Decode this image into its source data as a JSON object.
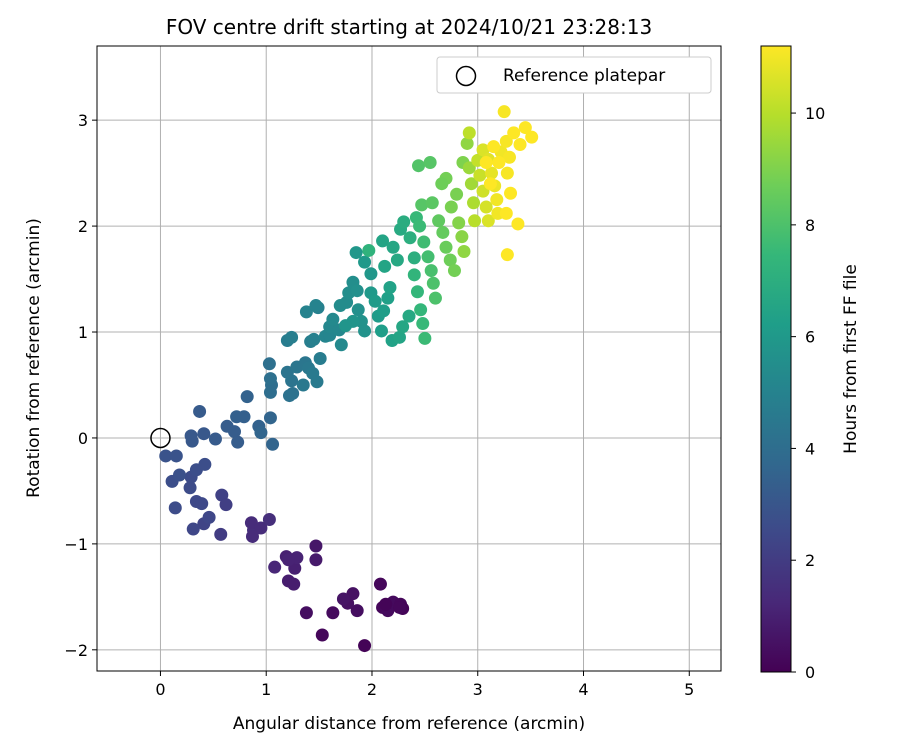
{
  "chart_data": {
    "type": "scatter",
    "title": "FOV centre drift starting at 2024/10/21 23:28:13",
    "xlabel": "Angular distance from reference (arcmin)",
    "ylabel": "Rotation from reference (arcmin)",
    "xlim": [
      -0.6,
      5.3
    ],
    "ylim": [
      -2.2,
      3.7
    ],
    "xticks": [
      0,
      1,
      2,
      3,
      4,
      5
    ],
    "yticks": [
      -2,
      -1,
      0,
      1,
      2,
      3
    ],
    "xtick_labels": [
      "0",
      "1",
      "2",
      "3",
      "4",
      "5"
    ],
    "ytick_labels": [
      "−2",
      "−1",
      "0",
      "1",
      "2",
      "3"
    ],
    "grid": true,
    "legend": {
      "placement": "top-right",
      "entries": [
        {
          "label": "Reference platepar",
          "marker": "open-circle"
        }
      ]
    },
    "reference_point": {
      "x": 0,
      "y": 0
    },
    "colorbar": {
      "label": "Hours from first FF file",
      "colormap": "viridis",
      "range": [
        0,
        11.2
      ],
      "ticks": [
        0,
        2,
        4,
        6,
        8,
        10
      ],
      "tick_labels": [
        "0",
        "2",
        "4",
        "6",
        "8",
        "10"
      ]
    },
    "colormap_stops": [
      "#440154",
      "#482878",
      "#3e4989",
      "#31688e",
      "#26828e",
      "#1f9e89",
      "#35b779",
      "#6ece58",
      "#b5de2b",
      "#fde725"
    ],
    "series": [
      {
        "points": [
          [
            1.93,
            -1.96,
            0.1
          ],
          [
            1.53,
            -1.86,
            0.2
          ],
          [
            1.63,
            -1.65,
            0.3
          ],
          [
            1.38,
            -1.65,
            0.4
          ],
          [
            1.86,
            -1.63,
            0.4
          ],
          [
            1.77,
            -1.56,
            0.5
          ],
          [
            1.82,
            -1.47,
            0.5
          ],
          [
            1.73,
            -1.52,
            0.6
          ],
          [
            2.08,
            -1.38,
            0.2
          ],
          [
            2.1,
            -1.6,
            0.2
          ],
          [
            2.15,
            -1.63,
            0.3
          ],
          [
            2.2,
            -1.55,
            0.3
          ],
          [
            2.27,
            -1.57,
            0.2
          ],
          [
            2.29,
            -1.61,
            0.1
          ],
          [
            2.13,
            -1.57,
            0.1
          ],
          [
            2.26,
            -1.6,
            0.2
          ],
          [
            1.21,
            -1.35,
            0.9
          ],
          [
            1.26,
            -1.38,
            0.9
          ],
          [
            1.27,
            -1.23,
            1.0
          ],
          [
            1.29,
            -1.13,
            1.1
          ],
          [
            1.19,
            -1.12,
            1.0
          ],
          [
            1.21,
            -1.15,
            1.1
          ],
          [
            1.47,
            -1.15,
            0.8
          ],
          [
            1.47,
            -1.02,
            0.7
          ],
          [
            1.08,
            -1.22,
            1.2
          ],
          [
            0.88,
            -0.87,
            1.5
          ],
          [
            0.86,
            -0.8,
            1.4
          ],
          [
            0.95,
            -0.85,
            1.4
          ],
          [
            1.03,
            -0.77,
            1.5
          ],
          [
            0.87,
            -0.93,
            1.4
          ],
          [
            0.57,
            -0.91,
            2.0
          ],
          [
            0.58,
            -0.54,
            2.2
          ],
          [
            0.62,
            -0.63,
            2.1
          ],
          [
            0.41,
            -0.81,
            2.3
          ],
          [
            0.31,
            -0.86,
            2.4
          ],
          [
            0.46,
            -0.75,
            2.4
          ],
          [
            0.34,
            -0.6,
            2.5
          ],
          [
            0.39,
            -0.62,
            2.5
          ],
          [
            0.28,
            -0.47,
            2.6
          ],
          [
            0.29,
            -0.37,
            2.6
          ],
          [
            0.34,
            -0.3,
            2.7
          ],
          [
            0.42,
            -0.25,
            2.7
          ],
          [
            0.14,
            -0.66,
            2.6
          ],
          [
            0.11,
            -0.41,
            2.7
          ],
          [
            0.18,
            -0.35,
            2.8
          ],
          [
            0.05,
            -0.17,
            2.9
          ],
          [
            0.15,
            -0.17,
            2.9
          ],
          [
            0.29,
            0.02,
            3.1
          ],
          [
            0.3,
            -0.03,
            3.1
          ],
          [
            0.41,
            0.04,
            3.1
          ],
          [
            0.37,
            0.25,
            3.2
          ],
          [
            0.52,
            -0.01,
            3.2
          ],
          [
            0.63,
            0.11,
            3.3
          ],
          [
            0.7,
            0.06,
            3.3
          ],
          [
            0.73,
            -0.04,
            3.3
          ],
          [
            0.72,
            0.2,
            3.4
          ],
          [
            0.79,
            0.2,
            3.4
          ],
          [
            0.82,
            0.39,
            3.5
          ],
          [
            0.93,
            0.11,
            3.5
          ],
          [
            0.95,
            0.05,
            3.6
          ],
          [
            1.06,
            -0.06,
            3.6
          ],
          [
            1.04,
            0.19,
            3.6
          ],
          [
            1.04,
            0.43,
            4.0
          ],
          [
            1.05,
            0.5,
            4.0
          ],
          [
            1.04,
            0.56,
            4.1
          ],
          [
            1.03,
            0.7,
            4.1
          ],
          [
            1.22,
            0.4,
            4.2
          ],
          [
            1.25,
            0.42,
            4.2
          ],
          [
            1.24,
            0.54,
            4.3
          ],
          [
            1.2,
            0.62,
            4.3
          ],
          [
            1.29,
            0.67,
            4.4
          ],
          [
            1.37,
            0.71,
            4.4
          ],
          [
            1.4,
            0.66,
            4.5
          ],
          [
            1.35,
            0.5,
            4.5
          ],
          [
            1.44,
            0.61,
            4.6
          ],
          [
            1.48,
            0.53,
            4.6
          ],
          [
            1.51,
            0.75,
            4.7
          ],
          [
            1.2,
            0.92,
            4.7
          ],
          [
            1.24,
            0.95,
            4.8
          ],
          [
            1.42,
            0.91,
            4.8
          ],
          [
            1.45,
            0.93,
            4.9
          ],
          [
            1.49,
            1.23,
            4.9
          ],
          [
            1.38,
            1.19,
            5.0
          ],
          [
            1.47,
            1.25,
            5.0
          ],
          [
            1.56,
            0.96,
            5.1
          ],
          [
            1.6,
            0.97,
            5.1
          ],
          [
            1.6,
            1.05,
            5.2
          ],
          [
            1.69,
            1.02,
            5.2
          ],
          [
            1.71,
            0.88,
            5.3
          ],
          [
            1.63,
            1.12,
            5.3
          ],
          [
            1.7,
            1.25,
            5.4
          ],
          [
            1.76,
            1.28,
            5.4
          ],
          [
            1.78,
            1.37,
            5.5
          ],
          [
            1.82,
            1.47,
            5.5
          ],
          [
            1.86,
            1.39,
            5.6
          ],
          [
            1.87,
            1.21,
            5.6
          ],
          [
            1.9,
            1.1,
            5.7
          ],
          [
            1.93,
            1.01,
            5.7
          ],
          [
            1.82,
            1.1,
            5.8
          ],
          [
            1.75,
            1.06,
            5.8
          ],
          [
            1.85,
            1.75,
            5.9
          ],
          [
            1.93,
            1.66,
            6.0
          ],
          [
            1.99,
            1.55,
            5.9
          ],
          [
            1.99,
            1.37,
            6.0
          ],
          [
            2.03,
            1.29,
            6.1
          ],
          [
            2.06,
            1.15,
            6.1
          ],
          [
            2.09,
            1.01,
            6.2
          ],
          [
            2.11,
            1.2,
            6.2
          ],
          [
            2.15,
            1.32,
            6.3
          ],
          [
            2.17,
            1.42,
            6.4
          ],
          [
            2.12,
            1.62,
            6.5
          ],
          [
            2.1,
            1.86,
            6.5
          ],
          [
            2.2,
            1.8,
            6.6
          ],
          [
            2.24,
            1.68,
            6.7
          ],
          [
            2.19,
            0.92,
            6.4
          ],
          [
            2.26,
            0.95,
            6.5
          ],
          [
            2.29,
            1.05,
            6.6
          ],
          [
            2.35,
            1.15,
            6.7
          ],
          [
            2.27,
            1.97,
            6.8
          ],
          [
            2.3,
            2.04,
            6.9
          ],
          [
            2.36,
            1.89,
            7.0
          ],
          [
            2.4,
            1.7,
            7.0
          ],
          [
            1.97,
            1.77,
            7.2
          ],
          [
            2.4,
            1.54,
            7.3
          ],
          [
            2.43,
            1.38,
            7.4
          ],
          [
            2.46,
            1.21,
            7.4
          ],
          [
            2.48,
            1.08,
            7.5
          ],
          [
            2.5,
            0.94,
            7.6
          ],
          [
            2.42,
            2.08,
            7.5
          ],
          [
            2.45,
            2.0,
            7.6
          ],
          [
            2.49,
            1.85,
            7.7
          ],
          [
            2.53,
            1.71,
            7.8
          ],
          [
            2.56,
            1.58,
            7.9
          ],
          [
            2.58,
            1.46,
            8.0
          ],
          [
            2.6,
            1.32,
            8.0
          ],
          [
            2.44,
            2.57,
            8.1
          ],
          [
            2.55,
            2.6,
            8.2
          ],
          [
            2.47,
            2.2,
            8.2
          ],
          [
            2.57,
            2.22,
            8.3
          ],
          [
            2.63,
            2.05,
            8.4
          ],
          [
            2.67,
            1.94,
            8.5
          ],
          [
            2.7,
            1.8,
            8.6
          ],
          [
            2.74,
            1.68,
            8.7
          ],
          [
            2.78,
            1.58,
            8.8
          ],
          [
            2.8,
            2.3,
            8.9
          ],
          [
            2.7,
            2.45,
            8.8
          ],
          [
            2.66,
            2.4,
            8.7
          ],
          [
            2.75,
            2.18,
            8.9
          ],
          [
            2.82,
            2.03,
            9.1
          ],
          [
            2.85,
            1.9,
            9.2
          ],
          [
            2.87,
            1.76,
            9.3
          ],
          [
            2.86,
            2.6,
            9.0
          ],
          [
            2.9,
            2.78,
            9.3
          ],
          [
            2.92,
            2.55,
            9.5
          ],
          [
            2.94,
            2.4,
            9.6
          ],
          [
            2.96,
            2.22,
            9.8
          ],
          [
            2.97,
            2.05,
            10.0
          ],
          [
            2.92,
            2.88,
            10.1
          ],
          [
            3.0,
            2.62,
            10.2
          ],
          [
            3.02,
            2.48,
            10.3
          ],
          [
            3.05,
            2.33,
            10.4
          ],
          [
            3.08,
            2.18,
            10.5
          ],
          [
            3.1,
            2.05,
            10.6
          ],
          [
            3.05,
            2.72,
            10.6
          ],
          [
            3.1,
            2.63,
            10.7
          ],
          [
            3.13,
            2.5,
            10.8
          ],
          [
            3.16,
            2.38,
            10.9
          ],
          [
            3.18,
            2.25,
            11.0
          ],
          [
            3.19,
            2.12,
            11.0
          ],
          [
            3.22,
            2.7,
            11.0
          ],
          [
            3.25,
            3.08,
            11.1
          ],
          [
            3.27,
            2.8,
            11.1
          ],
          [
            3.3,
            2.65,
            11.1
          ],
          [
            3.28,
            2.5,
            11.1
          ],
          [
            3.31,
            2.31,
            11.2
          ],
          [
            3.27,
            2.12,
            11.2
          ],
          [
            3.28,
            1.73,
            11.2
          ],
          [
            3.38,
            2.02,
            11.2
          ],
          [
            3.34,
            2.88,
            11.2
          ],
          [
            3.45,
            2.93,
            11.2
          ],
          [
            3.51,
            2.84,
            11.2
          ],
          [
            3.4,
            2.77,
            11.2
          ],
          [
            3.2,
            2.6,
            11.2
          ],
          [
            3.15,
            2.75,
            11.2
          ],
          [
            3.12,
            2.4,
            11.2
          ],
          [
            3.08,
            2.6,
            11.2
          ]
        ]
      }
    ]
  }
}
